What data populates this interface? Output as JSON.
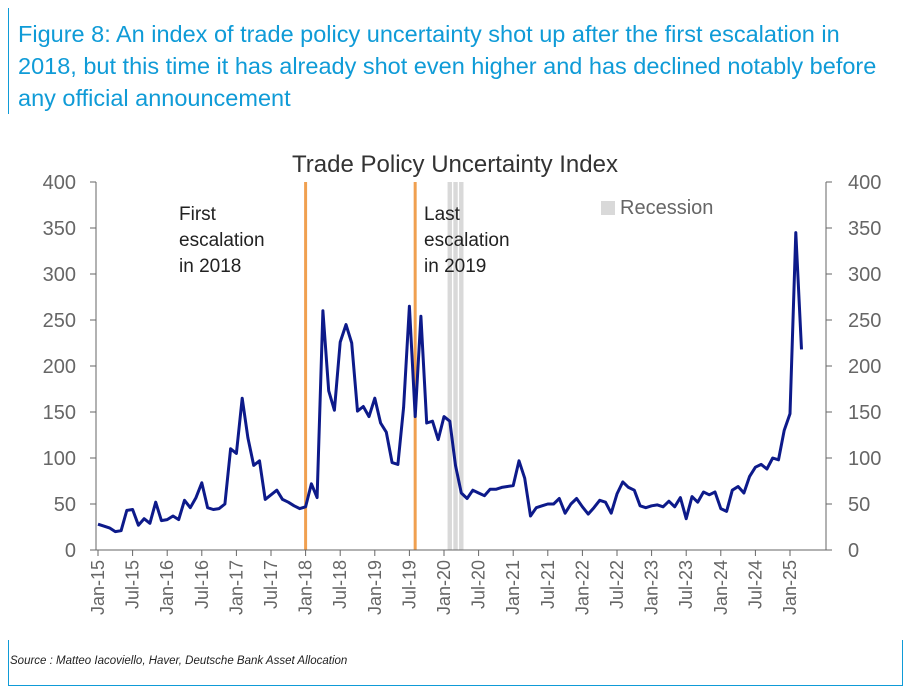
{
  "caption": "Figure 8: An index of trade policy uncertainty shot up after the first escalation in 2018, but this time it has already shot even higher and has declined notably before any official announcement",
  "source": "Source : Matteo Iacoviello, Haver, Deutsche Bank Asset Allocation",
  "colors": {
    "accent": "#0f9bd7",
    "line": "#0d1a8a",
    "event": "#f0a050",
    "recession": "#d9d9d9",
    "axis": "#666666"
  },
  "chart_data": {
    "type": "line",
    "title": "Trade Policy Uncertainty Index",
    "xlabel": "",
    "ylabel": "",
    "ylim": [
      0,
      400
    ],
    "yticks": [
      0,
      50,
      100,
      150,
      200,
      250,
      300,
      350,
      400
    ],
    "xticks": [
      "Jan-15",
      "Jul-15",
      "Jan-16",
      "Jul-16",
      "Jan-17",
      "Jul-17",
      "Jan-18",
      "Jul-18",
      "Jan-19",
      "Jul-19",
      "Jan-20",
      "Jul-20",
      "Jan-21",
      "Jul-21",
      "Jan-22",
      "Jul-22",
      "Jan-23",
      "Jul-23",
      "Jan-24",
      "Jul-24",
      "Jan-25"
    ],
    "legend": {
      "label": "Recession",
      "position": "top-right"
    },
    "events": [
      {
        "date": "2018-01",
        "label_lines": [
          "First",
          "escalation",
          "in 2018"
        ]
      },
      {
        "date": "2019-08",
        "label_lines": [
          "Last",
          "escalation",
          "in 2019"
        ]
      }
    ],
    "recession": {
      "start": "2020-02",
      "end": "2020-04"
    },
    "series": [
      {
        "start": "2015-01",
        "frequency": "monthly",
        "values": [
          28,
          26,
          24,
          20,
          21,
          43,
          44,
          27,
          34,
          29,
          52,
          32,
          33,
          37,
          33,
          54,
          46,
          57,
          73,
          46,
          44,
          45,
          50,
          110,
          105,
          165,
          122,
          92,
          97,
          55,
          60,
          65,
          55,
          52,
          48,
          45,
          47,
          72,
          57,
          260,
          173,
          152,
          226,
          245,
          225,
          151,
          156,
          145,
          165,
          138,
          128,
          95,
          93,
          155,
          265,
          145,
          254,
          138,
          140,
          120,
          145,
          140,
          92,
          62,
          56,
          65,
          62,
          59,
          66,
          66,
          68,
          69,
          70,
          97,
          78,
          37,
          46,
          48,
          50,
          50,
          56,
          40,
          50,
          56,
          47,
          39,
          46,
          54,
          52,
          40,
          61,
          74,
          68,
          65,
          48,
          46,
          48,
          49,
          47,
          53,
          47,
          57,
          34,
          58,
          52,
          63,
          60,
          63,
          45,
          42,
          65,
          69,
          62,
          80,
          90,
          93,
          88,
          100,
          98,
          130,
          148,
          345,
          218
        ]
      }
    ]
  }
}
